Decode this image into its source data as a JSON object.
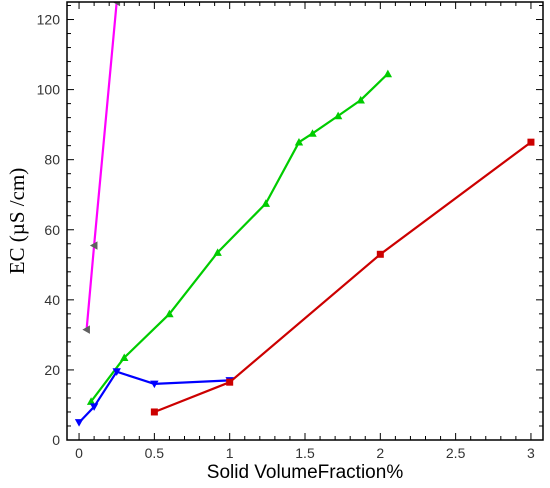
{
  "chart_data": {
    "type": "line",
    "title": "",
    "xlabel": "Solid VolumeFraction%",
    "ylabel": "EC (µS /cm)",
    "xlim": [
      -0.08,
      3.08
    ],
    "ylim": [
      0,
      125
    ],
    "xticks": [
      0,
      0.5,
      1,
      1.5,
      2,
      2.5,
      3
    ],
    "xtick_labels": [
      "0",
      "0.5",
      "1",
      "1.5",
      "2",
      "2.5",
      "3"
    ],
    "yticks": [
      0,
      20,
      40,
      60,
      80,
      100,
      120
    ],
    "ytick_labels": [
      "0",
      "20",
      "40",
      "60",
      "80",
      "100",
      "120"
    ],
    "grid": false,
    "legend": "none",
    "series": [
      {
        "color": "#ff00ff",
        "marker": "triangle-left",
        "marker_color": "#606060",
        "x": [
          0.05,
          0.1,
          0.25
        ],
        "y": [
          31.5,
          55.5,
          125
        ]
      },
      {
        "color": "#00cc00",
        "marker": "triangle-up",
        "marker_color": "#00cc00",
        "x": [
          0.08,
          0.3,
          0.6,
          0.92,
          1.24,
          1.46,
          1.55,
          1.72,
          1.87,
          2.05
        ],
        "y": [
          11,
          23.5,
          36,
          53.5,
          67.5,
          85,
          87.5,
          92.5,
          97,
          104.5
        ]
      },
      {
        "color": "#0000ff",
        "marker": "triangle-down",
        "marker_color": "#0000ff",
        "x": [
          0,
          0.1,
          0.25,
          0.5,
          1.0
        ],
        "y": [
          5,
          9.5,
          19.5,
          16,
          17
        ]
      },
      {
        "color": "#cc0000",
        "marker": "square",
        "marker_color": "#cc0000",
        "x": [
          0.5,
          1.0,
          2.0,
          3.0
        ],
        "y": [
          8,
          16.5,
          53,
          85
        ]
      }
    ]
  }
}
